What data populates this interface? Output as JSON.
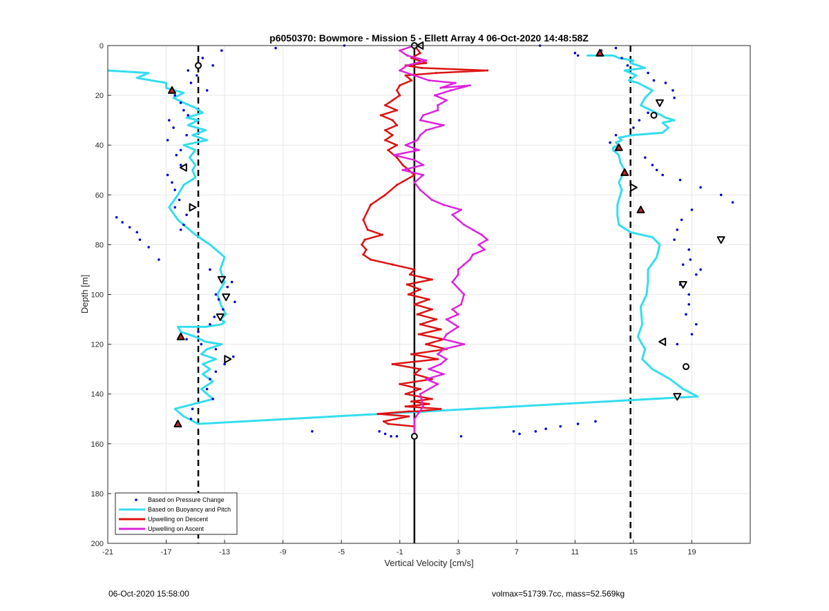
{
  "chart_data": {
    "type": "line",
    "title": "p6050370: Bowmore - Mission 5 - Ellett Array 4 06-Oct-2020 14:48:58Z",
    "xlabel": "Vertical Velocity [cm/s]",
    "ylabel": "Depth [m]",
    "xlim": [
      -21,
      23
    ],
    "ylim": [
      0,
      200
    ],
    "y_reversed": true,
    "grid": true,
    "xticks": [
      "-21",
      "-17",
      "-13",
      "-9",
      "-5",
      "-1",
      "3",
      "7",
      "11",
      "15",
      "19"
    ],
    "yticks": [
      "0",
      "20",
      "40",
      "60",
      "80",
      "100",
      "120",
      "140",
      "160",
      "180",
      "200"
    ],
    "reference_lines": [
      {
        "x": -14.8,
        "style": "dashed",
        "color": "#000000"
      },
      {
        "x": 0,
        "style": "solid",
        "color": "#000000"
      },
      {
        "x": 14.8,
        "style": "dashed",
        "color": "#000000"
      }
    ],
    "legend_position": "bottom-left",
    "series": [
      {
        "name": "Based on Pressure Change",
        "kind": "scatter",
        "color": "#0000CC",
        "x": [
          -13.2,
          -14.5,
          -13.8,
          -15.5,
          -14.9,
          -15.3,
          -14.2,
          -16.4,
          -16.0,
          -15.8,
          -15.5,
          -16.8,
          -16.5,
          -15.6,
          -16.9,
          -16.0,
          -16.3,
          -16.0,
          -16.9,
          -16.6,
          -16.4,
          -16.1,
          -16.4,
          -15.6,
          -15.8,
          -16.0,
          -20.0,
          -20.4,
          -19.5,
          -19.0,
          -18.8,
          -18.2,
          -17.5,
          -14.0,
          -13.0,
          -12.5,
          -12.8,
          -13.6,
          -13.4,
          -12.3,
          -13.1,
          -13.7,
          -14.0,
          -14.8,
          -15.6,
          -14.6,
          -13.6,
          -12.4,
          -13.0,
          -13.6,
          -14.0,
          -14.2,
          -13.8,
          -15.2,
          -15.3,
          -9.5,
          -4.8,
          -7.0,
          -2.4,
          -2.0,
          -1.6,
          -1.2,
          3.2,
          6.8,
          7.2,
          8.3,
          9.0,
          10.0,
          11.2,
          12.4,
          8.6,
          11.0,
          11.2,
          12.8,
          13.8,
          14.2,
          14.6,
          16.0,
          16.4,
          17.2,
          17.7,
          17.8,
          16.8,
          16.0,
          15.4,
          15.0,
          13.8,
          13.4,
          13.8,
          15.8,
          16.3,
          16.6,
          17.0,
          18.2,
          19.6,
          21.0,
          21.8,
          19.0,
          18.3,
          18.0,
          17.8,
          18.8,
          18.9,
          18.4,
          19.6,
          19.3,
          18.2,
          18.8,
          18.8,
          18.6,
          19.3,
          19.0,
          18.0
        ],
        "y": [
          2,
          5,
          8,
          10,
          12,
          15,
          18,
          20,
          23,
          26,
          28,
          30,
          33,
          36,
          38,
          42,
          44,
          48,
          52,
          55,
          58,
          62,
          65,
          68,
          72,
          74,
          71,
          69,
          73,
          75,
          78,
          81,
          86,
          90,
          93,
          95,
          97,
          100,
          102,
          103,
          106,
          109,
          112,
          115,
          118,
          120,
          122,
          125,
          128,
          131,
          134,
          138,
          142,
          146,
          150,
          1,
          0,
          155,
          155,
          156,
          157,
          157,
          157,
          155,
          156,
          155,
          154,
          153,
          152,
          151,
          0,
          3,
          4,
          2,
          1,
          5,
          8,
          11,
          14,
          15,
          18,
          21,
          24,
          27,
          30,
          33,
          36,
          39,
          42,
          45,
          48,
          50,
          52,
          54,
          57,
          60,
          63,
          66,
          70,
          74,
          78,
          82,
          86,
          88,
          90,
          92,
          96,
          100,
          104,
          108,
          112,
          116,
          120
        ]
      },
      {
        "name": "Based on Buoyancy and Pitch",
        "kind": "line",
        "color": "#33DDEE",
        "x": [
          -21,
          -18.2,
          -19.0,
          -17.0,
          -17.0,
          -15.8,
          -16.5,
          -15.8,
          -15.0,
          -14.5,
          -15.6,
          -14.8,
          -15.5,
          -14.3,
          -15.2,
          -14.2,
          -15.8,
          -15.0,
          -15.4,
          -15.0,
          -15.2,
          -15.0,
          -15.8,
          -16.2,
          -16.8,
          -16.2,
          -15.6,
          -15.0,
          -14.0,
          -13.0,
          -13.3,
          -13.0,
          -13.5,
          -13.2,
          -12.9,
          -13.3,
          -13.0,
          -13.2,
          -14.3,
          -16.2,
          -16.0,
          -15.0,
          -14.3,
          -13.2,
          -14.2,
          -14.6,
          -13.6,
          -14.5,
          -14.0,
          -14.5,
          -13.8,
          -14.6,
          -13.8,
          -16.4,
          -15.8,
          -14.8,
          19.4,
          18.4,
          17.5,
          16.3,
          15.6,
          15.8,
          15.3,
          15.6,
          15.5,
          15.9,
          16.0,
          16.0,
          16.6,
          16.8,
          16.3,
          14.8,
          14.0,
          13.9,
          13.9,
          14.2,
          14.0,
          14.4,
          14.1,
          14.0,
          13.6,
          13.6,
          14.0,
          13.8,
          14.2,
          14.0,
          14.9,
          17.0,
          17.4,
          17.0,
          17.8,
          17.2,
          16.9,
          15.5,
          15.8,
          16.3,
          15.3,
          14.7,
          15.2,
          14.4,
          15.8,
          14.8,
          15.0,
          14.0,
          13.6,
          12.5,
          11.8
        ],
        "y": [
          10,
          11,
          13,
          15,
          17,
          19,
          21,
          23,
          25,
          27,
          29,
          30,
          32,
          34,
          36,
          38,
          40,
          42,
          45,
          48,
          50,
          53,
          56,
          60,
          65,
          70,
          73,
          76,
          80,
          85,
          90,
          95,
          100,
          105,
          108,
          110,
          111,
          112,
          113,
          113,
          115,
          117,
          119,
          120,
          122,
          124,
          126,
          128,
          130,
          132,
          135,
          138,
          142,
          146,
          149,
          152,
          141,
          138,
          134,
          130,
          126,
          122,
          117,
          112,
          105,
          100,
          95,
          90,
          85,
          80,
          77,
          75,
          72,
          68,
          64,
          58,
          55,
          50,
          47,
          44,
          42,
          41,
          40,
          39,
          38,
          37,
          36,
          35,
          33,
          31,
          30,
          29,
          28,
          24,
          21,
          18,
          15,
          14,
          12,
          10,
          9,
          7,
          6,
          5,
          4,
          4,
          4
        ]
      },
      {
        "name": "Upwelling on Descent",
        "kind": "line",
        "color": "#DD1111",
        "x": [
          0.0,
          0.4,
          -0.2,
          0.8,
          -0.6,
          0.5,
          5.0,
          1.5,
          -0.6,
          -0.2,
          -1.0,
          -1.2,
          -1.0,
          -1.5,
          -2.0,
          -1.2,
          -2.3,
          -1.5,
          -1.2,
          -2.0,
          -1.5,
          -2.0,
          -1.2,
          -1.8,
          -1.2,
          -0.8,
          0.0,
          -1.2,
          -2.0,
          -3.0,
          -3.5,
          -3.2,
          -2.2,
          -3.4,
          -3.6,
          -3.3,
          -3.5,
          -3.0,
          -1.5,
          0.0,
          -0.3,
          1.2,
          -0.5,
          0.4,
          -0.4,
          1.0,
          0.0,
          1.2,
          0.2,
          1.5,
          0.4,
          1.8,
          0.3,
          2.0,
          0.8,
          2.2,
          -0.2,
          1.6,
          -1.5,
          0.4,
          0.0,
          1.2,
          -1.0,
          0.4,
          -0.6,
          1.2,
          -0.2,
          1.0,
          -0.6,
          1.8,
          0.2,
          -0.4,
          -2.5,
          -0.4,
          -2.1,
          -1.8,
          0.0,
          0.0
        ],
        "y": [
          0,
          3,
          5,
          7,
          8,
          9,
          10,
          11,
          12,
          14,
          16,
          18,
          20,
          22,
          24,
          26,
          28,
          30,
          32,
          34,
          36,
          38,
          40,
          42,
          45,
          48,
          52,
          56,
          60,
          64,
          70,
          74,
          76,
          78,
          80,
          82,
          84,
          86,
          88,
          90,
          92,
          94,
          96,
          98,
          100,
          102,
          104,
          106,
          108,
          110,
          112,
          114,
          116,
          118,
          120,
          122,
          124,
          126,
          128,
          130,
          132,
          134,
          136,
          138,
          140,
          142,
          143,
          144,
          145,
          146,
          147,
          147,
          148,
          149,
          151,
          152,
          153,
          157
        ]
      },
      {
        "name": "Upwelling on Ascent",
        "kind": "line",
        "color": "#DD22DD",
        "x": [
          0.0,
          -1.0,
          -0.5,
          0.8,
          -0.5,
          -1.0,
          0.0,
          1.0,
          2.8,
          1.8,
          3.8,
          2.5,
          1.4,
          2.2,
          1.6,
          1.6,
          0.6,
          0.4,
          2.0,
          0.8,
          0.4,
          0.2,
          -0.6,
          0.3,
          -1.4,
          0.0,
          0.6,
          -0.8,
          0.6,
          0.0,
          0.4,
          1.2,
          2.0,
          3.2,
          2.6,
          3.0,
          3.4,
          4.0,
          4.6,
          5.0,
          4.4,
          4.8,
          4.0,
          3.8,
          3.4,
          3.0,
          3.0,
          2.6,
          3.4,
          3.2,
          2.6,
          3.0,
          2.2,
          3.0,
          2.2,
          2.0,
          3.4,
          2.0,
          1.6,
          2.2,
          1.8,
          1.0,
          2.0,
          0.8,
          1.6,
          0.4,
          0.6,
          0.0,
          0.0
        ],
        "y": [
          0,
          2,
          4,
          6,
          8,
          10,
          12,
          14,
          15,
          17,
          16,
          18,
          20,
          22,
          24,
          26,
          28,
          30,
          32,
          34,
          36,
          38,
          40,
          42,
          44,
          46,
          48,
          50,
          52,
          55,
          58,
          62,
          64,
          66,
          68,
          70,
          72,
          74,
          76,
          78,
          80,
          82,
          84,
          86,
          88,
          90,
          92,
          95,
          100,
          104,
          106,
          108,
          110,
          113,
          116,
          118,
          120,
          122,
          124,
          126,
          128,
          130,
          132,
          134,
          136,
          140,
          145,
          150,
          157
        ]
      }
    ],
    "markers": {
      "up_color": "#CC2222",
      "down_color": "#ffffff",
      "left": [
        [
          -14.8,
          8,
          "o"
        ],
        [
          -16.6,
          18,
          "up"
        ],
        [
          -15.8,
          49,
          "left"
        ],
        [
          -15.2,
          65,
          "right"
        ],
        [
          -13.2,
          94,
          "down"
        ],
        [
          -12.9,
          101,
          "down"
        ],
        [
          -13.3,
          109,
          "down"
        ],
        [
          -16.0,
          117,
          "up"
        ],
        [
          -12.8,
          126,
          "right"
        ],
        [
          -16.2,
          152,
          "up"
        ]
      ],
      "center": [
        [
          0.0,
          0,
          "o"
        ],
        [
          0.4,
          0,
          "left"
        ],
        [
          0.0,
          157,
          "o"
        ]
      ],
      "right": [
        [
          12.7,
          3,
          "up"
        ],
        [
          16.8,
          23,
          "down"
        ],
        [
          16.4,
          28,
          "o"
        ],
        [
          14.0,
          41,
          "up"
        ],
        [
          14.4,
          51,
          "up"
        ],
        [
          15.0,
          57,
          "right"
        ],
        [
          15.5,
          66,
          "up"
        ],
        [
          21.0,
          78,
          "down"
        ],
        [
          18.4,
          96,
          "down"
        ],
        [
          17.0,
          119,
          "left"
        ],
        [
          18.6,
          129,
          "o"
        ],
        [
          18.0,
          141,
          "down"
        ]
      ]
    }
  },
  "footer": {
    "left": "06-Oct-2020 15:58:00",
    "right": "volmax=51739.7cc, mass=52.569kg"
  }
}
